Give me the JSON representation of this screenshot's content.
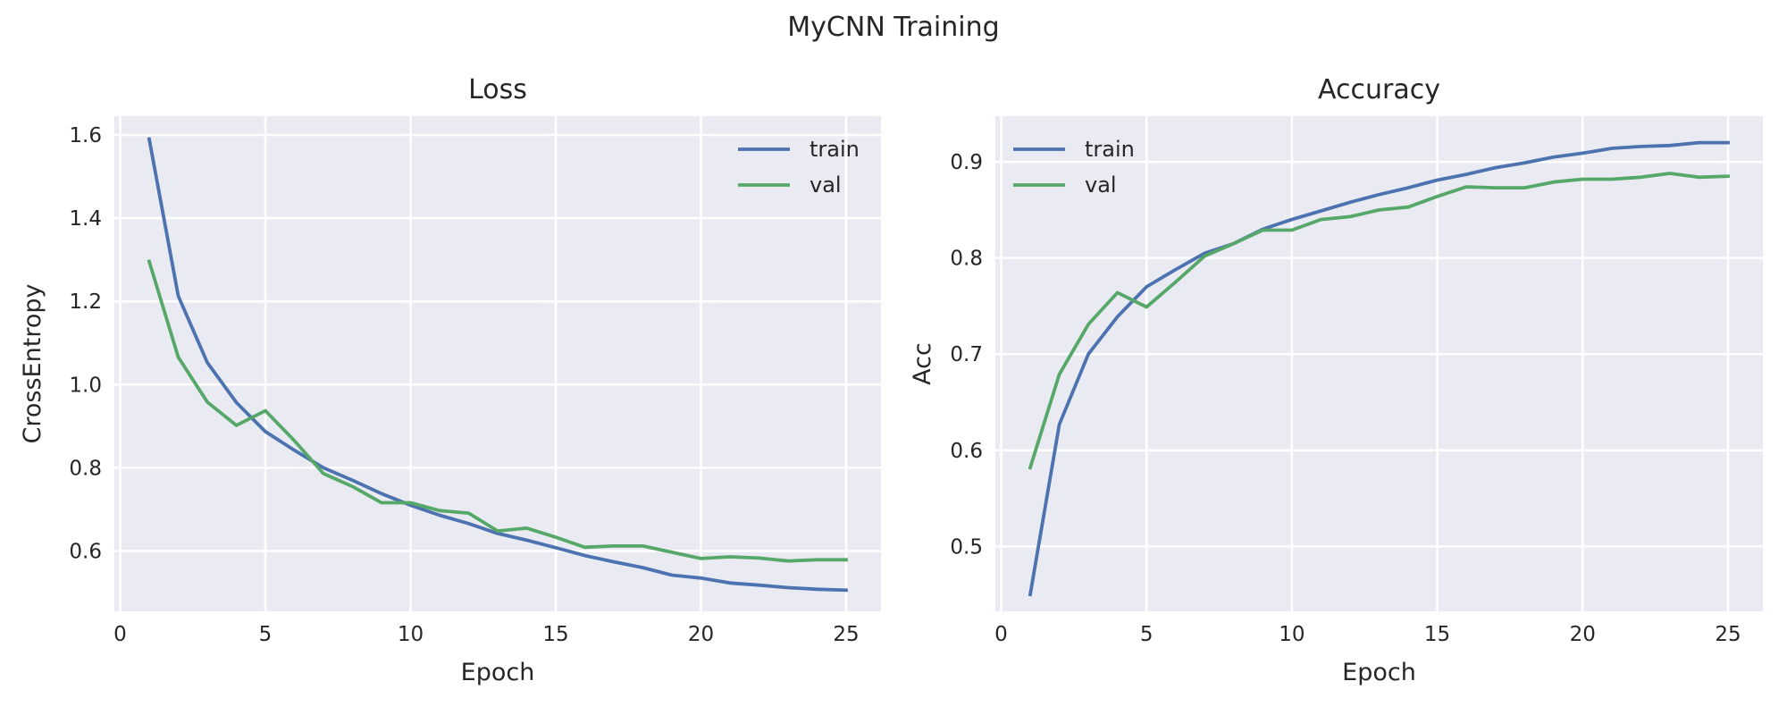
{
  "figure": {
    "title": "MyCNN Training",
    "background": "#ffffff",
    "axes_face": "#eaeaf2",
    "grid_color": "#ffffff"
  },
  "chart_data": [
    {
      "type": "line",
      "title": "Loss",
      "xlabel": "Epoch",
      "ylabel": "CrossEntropy",
      "xlim": [
        -0.2,
        26.2
      ],
      "ylim": [
        0.455,
        1.645
      ],
      "xticks": [
        0,
        5,
        10,
        15,
        20,
        25
      ],
      "yticks": [
        0.6,
        0.8,
        1.0,
        1.2,
        1.4,
        1.6
      ],
      "xtick_labels": [
        "0",
        "5",
        "10",
        "15",
        "20",
        "25"
      ],
      "ytick_labels": [
        "0.6",
        "0.8",
        "1.0",
        "1.2",
        "1.4",
        "1.6"
      ],
      "grid": true,
      "legend": "upper right",
      "x": [
        1,
        2,
        3,
        4,
        5,
        6,
        7,
        8,
        9,
        10,
        11,
        12,
        13,
        14,
        15,
        16,
        17,
        18,
        19,
        20,
        21,
        22,
        23,
        24,
        25
      ],
      "series": [
        {
          "name": "train",
          "color": "#4c72b0",
          "values": [
            1.59,
            1.213,
            1.053,
            0.957,
            0.887,
            0.842,
            0.8,
            0.77,
            0.738,
            0.71,
            0.686,
            0.666,
            0.642,
            0.626,
            0.608,
            0.589,
            0.574,
            0.56,
            0.542,
            0.535,
            0.523,
            0.518,
            0.512,
            0.508,
            0.506
          ]
        },
        {
          "name": "val",
          "color": "#55a868",
          "values": [
            1.296,
            1.066,
            0.958,
            0.902,
            0.937,
            0.865,
            0.786,
            0.755,
            0.716,
            0.716,
            0.697,
            0.691,
            0.648,
            0.655,
            0.633,
            0.609,
            0.612,
            0.612,
            0.597,
            0.582,
            0.586,
            0.583,
            0.576,
            0.579,
            0.579
          ]
        }
      ]
    },
    {
      "type": "line",
      "title": "Accuracy",
      "xlabel": "Epoch",
      "ylabel": "Acc",
      "xlim": [
        -0.2,
        26.2
      ],
      "ylim": [
        0.4325,
        0.9475
      ],
      "xticks": [
        0,
        5,
        10,
        15,
        20,
        25
      ],
      "yticks": [
        0.5,
        0.6,
        0.7,
        0.8,
        0.9
      ],
      "xtick_labels": [
        "0",
        "5",
        "10",
        "15",
        "20",
        "25"
      ],
      "ytick_labels": [
        "0.5",
        "0.6",
        "0.7",
        "0.8",
        "0.9"
      ],
      "grid": true,
      "legend": "upper left",
      "x": [
        1,
        2,
        3,
        4,
        5,
        6,
        7,
        8,
        9,
        10,
        11,
        12,
        13,
        14,
        15,
        16,
        17,
        18,
        19,
        20,
        21,
        22,
        23,
        24,
        25
      ],
      "series": [
        {
          "name": "train",
          "color": "#4c72b0",
          "values": [
            0.45,
            0.627,
            0.7,
            0.739,
            0.77,
            0.788,
            0.805,
            0.815,
            0.83,
            0.84,
            0.849,
            0.858,
            0.866,
            0.873,
            0.881,
            0.887,
            0.894,
            0.899,
            0.905,
            0.909,
            0.914,
            0.916,
            0.917,
            0.92,
            0.92
          ]
        },
        {
          "name": "val",
          "color": "#55a868",
          "values": [
            0.582,
            0.679,
            0.731,
            0.764,
            0.749,
            0.775,
            0.802,
            0.815,
            0.829,
            0.829,
            0.84,
            0.843,
            0.85,
            0.853,
            0.864,
            0.874,
            0.873,
            0.873,
            0.879,
            0.882,
            0.882,
            0.884,
            0.888,
            0.884,
            0.885
          ]
        }
      ]
    }
  ]
}
